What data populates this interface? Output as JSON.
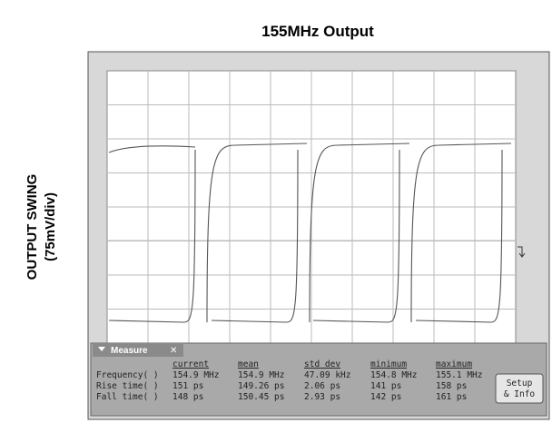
{
  "title": "155MHz Output",
  "y_label": [
    "OUTPUT SWING",
    "(75mV/div)"
  ],
  "measure": {
    "tab": "Measure",
    "columns": [
      "current",
      "mean",
      "std dev",
      "minimum",
      "maximum"
    ],
    "rows": [
      [
        "Frequency( )",
        "154.9 MHz",
        "154.9 MHz",
        "47.09 kHz",
        "154.8 MHz",
        "155.1 MHz"
      ],
      [
        "Rise time( )",
        "151 ps",
        "149.26 ps",
        "2.06 ps",
        "141 ps",
        "158 ps"
      ],
      [
        "Fall time( )",
        "148 ps",
        "150.45 ps",
        "2.93 ps",
        "142 ps",
        "161 ps"
      ]
    ],
    "button": [
      "Setup",
      "& Info"
    ]
  }
}
